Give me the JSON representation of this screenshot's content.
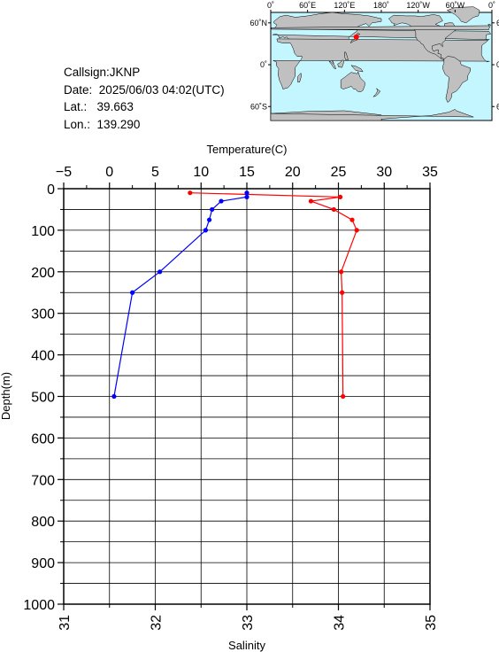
{
  "station": {
    "callsign_label": "Callsign:",
    "callsign": "JKNP",
    "date_label": "Date:",
    "date": "2025/06/03 04:02(UTC)",
    "lat_label": "Lat.:",
    "lat": "39.663",
    "lon_label": "Lon.:",
    "lon": "139.290"
  },
  "map": {
    "top_labels": [
      "0˚",
      "60˚E",
      "120˚E",
      "180˚",
      "120˚W",
      "60˚W",
      "0˚"
    ],
    "side_labels": [
      "60˚N",
      "0˚",
      "60˚S"
    ],
    "ocean_color": "#c4f6ff",
    "land_color": "#c0c0c0",
    "marker_color": "#ff0000",
    "marker_lon": 139.29,
    "marker_lat": 39.663
  },
  "chart_data": {
    "type": "line",
    "ylabel": "Depth(m)",
    "ylim": [
      0,
      1000
    ],
    "y_ticks": [
      "0",
      "100",
      "200",
      "300",
      "400",
      "500",
      "600",
      "700",
      "800",
      "900",
      "1000"
    ],
    "x_top": {
      "label": "Temperature(C)",
      "lim": [
        -5,
        35
      ],
      "ticks": [
        "−5",
        "0",
        "5",
        "10",
        "15",
        "20",
        "25",
        "30",
        "35"
      ]
    },
    "x_bottom": {
      "label": "Salinity",
      "lim": [
        31,
        35
      ],
      "ticks": [
        "31",
        "32",
        "33",
        "34",
        "35"
      ]
    },
    "grid": true,
    "series": [
      {
        "axis": "top",
        "color": "#ff0000",
        "points": [
          {
            "x": 8.8,
            "y": 10
          },
          {
            "x": 25.2,
            "y": 20
          },
          {
            "x": 22.0,
            "y": 30
          },
          {
            "x": 24.5,
            "y": 50
          },
          {
            "x": 26.5,
            "y": 75
          },
          {
            "x": 27.0,
            "y": 100
          },
          {
            "x": 25.3,
            "y": 200
          },
          {
            "x": 25.4,
            "y": 250
          },
          {
            "x": 25.5,
            "y": 500
          }
        ]
      },
      {
        "axis": "bottom",
        "color": "#0000ff",
        "points": [
          {
            "x": 33.0,
            "y": 10
          },
          {
            "x": 33.0,
            "y": 20
          },
          {
            "x": 32.72,
            "y": 30
          },
          {
            "x": 32.62,
            "y": 50
          },
          {
            "x": 32.59,
            "y": 75
          },
          {
            "x": 32.55,
            "y": 100
          },
          {
            "x": 32.05,
            "y": 200
          },
          {
            "x": 31.75,
            "y": 250
          },
          {
            "x": 31.55,
            "y": 500
          }
        ]
      }
    ]
  }
}
